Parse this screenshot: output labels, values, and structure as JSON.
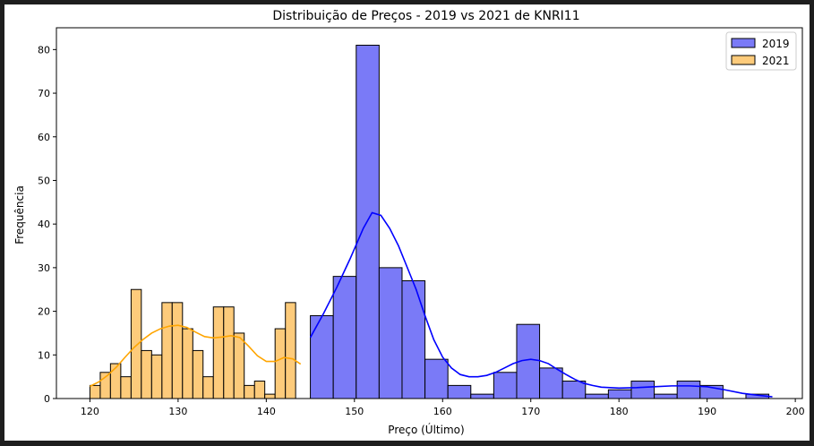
{
  "chart_data": {
    "type": "bar",
    "title": "Distribuição de Preços - 2019 vs 2021 de KNRI11",
    "xlabel": "Preço (Último)",
    "ylabel": "Frequência",
    "xlim": [
      116.2,
      200.8
    ],
    "ylim": [
      0,
      85
    ],
    "xticks": [
      120,
      130,
      140,
      150,
      160,
      170,
      180,
      190,
      200
    ],
    "yticks": [
      0,
      10,
      20,
      30,
      40,
      50,
      60,
      70,
      80
    ],
    "grid": false,
    "legend": "top-right",
    "series": [
      {
        "name": "2019",
        "color": "#7a7af7",
        "edge_color": "#000000",
        "kde_color": "#0000ff",
        "bin_edges": [
          145.0,
          147.6,
          150.2,
          152.8,
          155.4,
          158.0,
          160.6,
          163.2,
          165.8,
          168.4,
          171.0,
          173.6,
          176.2,
          178.8,
          181.4,
          184.0,
          186.6,
          189.2,
          191.8,
          194.4,
          197.0
        ],
        "values": [
          19,
          28,
          81,
          30,
          27,
          9,
          3,
          1,
          6,
          17,
          7,
          4,
          1,
          2,
          4,
          1,
          4,
          3,
          0,
          1
        ],
        "kde": [
          [
            145,
            14
          ],
          [
            146.5,
            19.5
          ],
          [
            148,
            25.5
          ],
          [
            149.5,
            32
          ],
          [
            151,
            39
          ],
          [
            152,
            42.6
          ],
          [
            153,
            42
          ],
          [
            154,
            39
          ],
          [
            155,
            35
          ],
          [
            156,
            30
          ],
          [
            157,
            25
          ],
          [
            158,
            19
          ],
          [
            159,
            13.5
          ],
          [
            160,
            9.5
          ],
          [
            161,
            7
          ],
          [
            162,
            5.5
          ],
          [
            163,
            5
          ],
          [
            164,
            5
          ],
          [
            165,
            5.3
          ],
          [
            166,
            6
          ],
          [
            167,
            7
          ],
          [
            168,
            8
          ],
          [
            169,
            8.7
          ],
          [
            170,
            9
          ],
          [
            171,
            8.7
          ],
          [
            172,
            8
          ],
          [
            173,
            6.7
          ],
          [
            174,
            5.5
          ],
          [
            175,
            4.4
          ],
          [
            176,
            3.5
          ],
          [
            177,
            3
          ],
          [
            178,
            2.6
          ],
          [
            180,
            2.4
          ],
          [
            182,
            2.5
          ],
          [
            184,
            2.7
          ],
          [
            186,
            2.9
          ],
          [
            188,
            2.9
          ],
          [
            190,
            2.7
          ],
          [
            192,
            2
          ],
          [
            194,
            1.2
          ],
          [
            196,
            0.7
          ],
          [
            197.4,
            0.4
          ]
        ]
      },
      {
        "name": "2021",
        "color": "#fdcb7b",
        "edge_color": "#000000",
        "kde_color": "#ffa500",
        "bin_edges": [
          120.0,
          121.17,
          122.33,
          123.5,
          124.67,
          125.83,
          127.0,
          128.17,
          129.33,
          130.5,
          131.67,
          132.83,
          134.0,
          135.17,
          136.33,
          137.5,
          138.67,
          139.83,
          141.0,
          142.17,
          143.33
        ],
        "values": [
          3,
          6,
          8,
          5,
          25,
          11,
          10,
          22,
          22,
          16,
          11,
          5,
          21,
          21,
          15,
          3,
          4,
          1,
          16,
          22
        ],
        "kde": [
          [
            120,
            2.8
          ],
          [
            121,
            3.8
          ],
          [
            122,
            5.3
          ],
          [
            123,
            7.2
          ],
          [
            124,
            9.5
          ],
          [
            125,
            11.7
          ],
          [
            126,
            13.5
          ],
          [
            127,
            15
          ],
          [
            128,
            16
          ],
          [
            129,
            16.6
          ],
          [
            130,
            16.8
          ],
          [
            131,
            16.3
          ],
          [
            132,
            15.2
          ],
          [
            133,
            14.2
          ],
          [
            134,
            13.9
          ],
          [
            135,
            14.1
          ],
          [
            136,
            14.4
          ],
          [
            137,
            14
          ],
          [
            138,
            12
          ],
          [
            139,
            9.8
          ],
          [
            140,
            8.5
          ],
          [
            141,
            8.5
          ],
          [
            142,
            9.4
          ],
          [
            143,
            9.1
          ],
          [
            143.9,
            7.9
          ]
        ]
      }
    ]
  }
}
